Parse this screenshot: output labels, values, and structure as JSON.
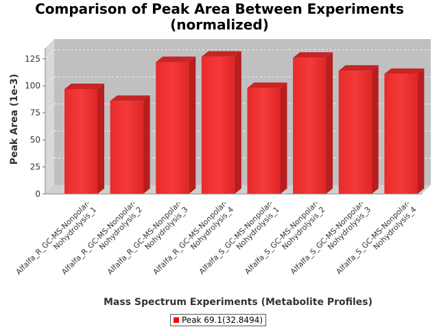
{
  "chart_data": {
    "type": "bar",
    "title_line1": "Comparison of Peak Area Between Experiments",
    "title_line2": "(normalized)",
    "xlabel": "Mass Spectrum Experiments (Metabolite Profiles)",
    "ylabel": "Peak Area (1e-3)",
    "ylim": [
      0,
      135
    ],
    "yticks": [
      0,
      25,
      50,
      75,
      100,
      125
    ],
    "grid": true,
    "legend_position": "bottom",
    "categories": [
      [
        "Alfalfa_R_GC-MS-Nonpolar-",
        "Nohydrolysis_1"
      ],
      [
        "Alfalfa_R_GC-MS-Nonpolar-",
        "Nohydrolysis_2"
      ],
      [
        "Alfalfa_R_GC-MS-Nonpolar-",
        "Nohydrolysis_3"
      ],
      [
        "Alfalfa_R_GC-MS-Nonpolar-",
        "Nohydrolysis_4"
      ],
      [
        "Alfalfa_S_GC-MS-Nonpolar-",
        "Nohydrolysis_1"
      ],
      [
        "Alfalfa_S_GC-MS-Nonpolar-",
        "Nohydrolysis_2"
      ],
      [
        "Alfalfa_S_GC-MS-Nonpolar-",
        "Nohydrolysis_3"
      ],
      [
        "Alfalfa_S_GC-MS-Nonpolar-",
        "Nohydrolysis_4"
      ]
    ],
    "series": [
      {
        "name": "Peak 69.1(32.8494)",
        "color": "#ff0000",
        "values": [
          97,
          86,
          122,
          127,
          98,
          126,
          114,
          111
        ]
      }
    ]
  }
}
